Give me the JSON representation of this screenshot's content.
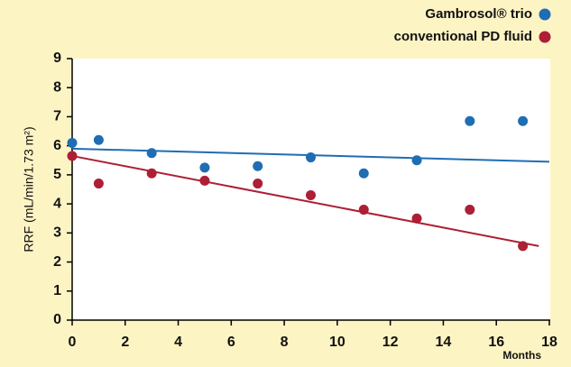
{
  "chart_data": {
    "type": "scatter",
    "y_label": "RRF (mL/min/1.73 m²)",
    "x_label": "Months",
    "xlim": [
      0,
      18
    ],
    "xticks": [
      0,
      2,
      4,
      6,
      8,
      10,
      12,
      14,
      16,
      18
    ],
    "ylim": [
      0,
      9
    ],
    "yticks": [
      0,
      1,
      2,
      3,
      4,
      5,
      6,
      7,
      8,
      9
    ],
    "grid": false,
    "legend": "top-right",
    "series": [
      {
        "name": "Gambrosol® trio",
        "color": "#1f6db3",
        "x": [
          0,
          1,
          3,
          5,
          7,
          9,
          11,
          13,
          15,
          17
        ],
        "values": [
          6.1,
          6.2,
          5.75,
          5.25,
          5.3,
          5.6,
          5.05,
          5.5,
          6.85,
          6.85
        ],
        "trend": {
          "x": [
            0,
            18
          ],
          "values": [
            5.9,
            5.45
          ]
        }
      },
      {
        "name": "conventional PD fluid",
        "color": "#ad1f35",
        "x": [
          0,
          1,
          3,
          5,
          7,
          9,
          11,
          13,
          15,
          17
        ],
        "values": [
          5.65,
          4.7,
          5.05,
          4.8,
          4.7,
          4.3,
          3.8,
          3.5,
          3.8,
          2.55
        ],
        "trend": {
          "x": [
            0,
            17.6
          ],
          "values": [
            5.65,
            2.55
          ]
        }
      }
    ]
  }
}
